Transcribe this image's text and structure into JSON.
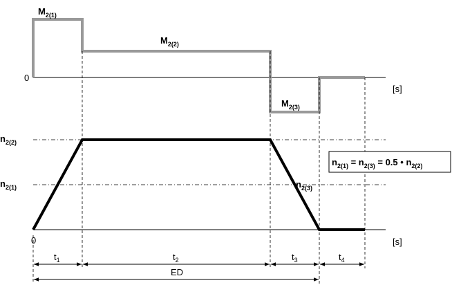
{
  "torque": {
    "zero_label": "0",
    "unit_label": "[s]",
    "m1": {
      "base": "M",
      "sub": "2(1)"
    },
    "m2": {
      "base": "M",
      "sub": "2(2)"
    },
    "m3": {
      "base": "M",
      "sub": "2(3)"
    },
    "color": "#999999"
  },
  "speed": {
    "zero_label": "0",
    "unit_label": "[s]",
    "n22": {
      "base": "n",
      "sub": "2(2)"
    },
    "n21": {
      "base": "n",
      "sub": "2(1)"
    },
    "n23": {
      "base": "n",
      "sub": "2(3)"
    },
    "color": "#000000"
  },
  "formula": {
    "a_base": "n",
    "a_sub": "2(1)",
    "eq1": " = ",
    "b_base": "n",
    "b_sub": "2(3)",
    "eq2": " = 0.5 • ",
    "c_base": "n",
    "c_sub": "2(2)"
  },
  "intervals": {
    "t1": {
      "base": "t",
      "sub": "1"
    },
    "t2": {
      "base": "t",
      "sub": "2"
    },
    "t3": {
      "base": "t",
      "sub": "3"
    },
    "t4": {
      "base": "t",
      "sub": "4"
    },
    "ed": "ED"
  }
}
